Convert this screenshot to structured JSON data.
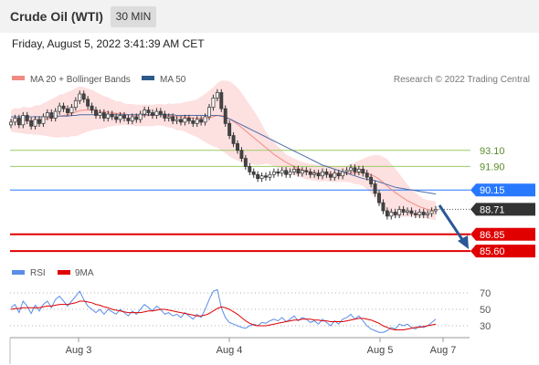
{
  "header": {
    "title": "Crude Oil (WTI)",
    "interval": "30 MIN",
    "datetime": "Friday, August 5, 2022 3:41:39 AM CET"
  },
  "legend": {
    "ma20_bb": "MA 20 + Bollinger Bands",
    "ma50": "MA 50",
    "copyright": "Research © 2022 Trading Central"
  },
  "levels": [
    {
      "value": "93.10",
      "price": 93.1,
      "color": "#9ccc65",
      "style": "line"
    },
    {
      "value": "91.90",
      "price": 91.9,
      "color": "#9ccc65",
      "style": "line"
    },
    {
      "value": "90.15",
      "price": 90.15,
      "color": "#2979ff",
      "style": "box"
    },
    {
      "value": "88.71",
      "price": 88.71,
      "color": "#333333",
      "style": "box"
    },
    {
      "value": "86.85",
      "price": 86.85,
      "color": "#e00000",
      "style": "box"
    },
    {
      "value": "85.60",
      "price": 85.6,
      "color": "#e00000",
      "style": "box"
    }
  ],
  "rsi": {
    "label": "RSI",
    "ma_label": "9MA",
    "ticks": [
      "70",
      "50",
      "30"
    ]
  },
  "x_axis": [
    "Aug 3",
    "Aug 4",
    "Aug 5",
    "Aug 7"
  ],
  "chart_data": {
    "type": "candlestick",
    "ylim": [
      85.0,
      97.5
    ],
    "rsi_ylim": [
      20,
      80
    ],
    "close": [
      95.2,
      95.5,
      95.0,
      95.7,
      95.3,
      94.9,
      95.4,
      95.1,
      95.6,
      95.9,
      95.5,
      96.0,
      96.4,
      96.2,
      95.9,
      96.3,
      96.8,
      97.3,
      96.9,
      96.4,
      96.1,
      95.7,
      95.9,
      95.5,
      95.8,
      95.6,
      95.4,
      95.7,
      95.5,
      95.3,
      95.6,
      95.4,
      95.8,
      96.1,
      95.9,
      95.7,
      96.0,
      95.8,
      95.5,
      95.6,
      95.3,
      95.4,
      95.2,
      95.5,
      95.3,
      95.1,
      95.4,
      95.2,
      95.6,
      96.3,
      97.0,
      97.4,
      96.2,
      95.1,
      94.2,
      93.6,
      93.1,
      92.5,
      91.9,
      91.5,
      91.3,
      91.0,
      91.2,
      91.1,
      91.3,
      91.5,
      91.4,
      91.6,
      91.3,
      91.5,
      91.7,
      91.4,
      91.6,
      91.5,
      91.3,
      91.4,
      91.2,
      91.5,
      91.3,
      91.1,
      91.4,
      91.2,
      91.5,
      91.6,
      91.8,
      91.5,
      91.7,
      91.4,
      91.1,
      90.6,
      89.9,
      89.2,
      88.6,
      88.2,
      88.5,
      88.3,
      88.7,
      88.5,
      88.6,
      88.4,
      88.3,
      88.5,
      88.3,
      88.4,
      88.6,
      88.71
    ],
    "ma20": [
      95.3,
      95.35,
      95.3,
      95.35,
      95.3,
      95.3,
      95.35,
      95.35,
      95.4,
      95.45,
      95.5,
      95.55,
      95.65,
      95.7,
      95.75,
      95.85,
      95.95,
      96.05,
      96.1,
      96.1,
      96.1,
      96.05,
      96.0,
      95.95,
      95.95,
      95.9,
      95.85,
      95.85,
      95.8,
      95.75,
      95.75,
      95.7,
      95.7,
      95.7,
      95.7,
      95.7,
      95.75,
      95.75,
      95.7,
      95.7,
      95.65,
      95.6,
      95.6,
      95.6,
      95.55,
      95.5,
      95.5,
      95.5,
      95.5,
      95.55,
      95.6,
      95.7,
      95.7,
      95.6,
      95.45,
      95.25,
      95.05,
      94.8,
      94.55,
      94.3,
      94.05,
      93.8,
      93.55,
      93.3,
      93.05,
      92.8,
      92.6,
      92.4,
      92.2,
      92.05,
      91.9,
      91.75,
      91.65,
      91.55,
      91.5,
      91.45,
      91.4,
      91.4,
      91.4,
      91.35,
      91.35,
      91.35,
      91.35,
      91.35,
      91.4,
      91.4,
      91.45,
      91.45,
      91.4,
      91.3,
      91.15,
      90.95,
      90.7,
      90.45,
      90.2,
      89.95,
      89.75,
      89.55,
      89.35,
      89.2,
      89.05,
      88.9,
      88.8,
      88.7,
      88.65,
      88.6
    ],
    "ma50": [
      95.6,
      95.6,
      95.6,
      95.6,
      95.6,
      95.6,
      95.6,
      95.6,
      95.6,
      95.6,
      95.6,
      95.65,
      95.65,
      95.65,
      95.65,
      95.7,
      95.7,
      95.75,
      95.75,
      95.75,
      95.75,
      95.75,
      95.75,
      95.75,
      95.75,
      95.75,
      95.75,
      95.75,
      95.75,
      95.75,
      95.75,
      95.75,
      95.75,
      95.75,
      95.75,
      95.75,
      95.75,
      95.75,
      95.75,
      95.75,
      95.75,
      95.7,
      95.7,
      95.7,
      95.7,
      95.7,
      95.7,
      95.7,
      95.7,
      95.7,
      95.7,
      95.7,
      95.65,
      95.55,
      95.45,
      95.3,
      95.15,
      95.0,
      94.85,
      94.7,
      94.55,
      94.4,
      94.25,
      94.1,
      93.95,
      93.8,
      93.65,
      93.5,
      93.35,
      93.2,
      93.05,
      92.9,
      92.75,
      92.6,
      92.45,
      92.3,
      92.15,
      92.0,
      91.9,
      91.8,
      91.7,
      91.6,
      91.5,
      91.4,
      91.3,
      91.2,
      91.1,
      91.0,
      90.95,
      90.9,
      90.85,
      90.75,
      90.65,
      90.55,
      90.45,
      90.35,
      90.3,
      90.25,
      90.2,
      90.15,
      90.1,
      90.05,
      90.0,
      89.95,
      89.9,
      89.85
    ],
    "bb_width": [
      0.8,
      0.9,
      0.9,
      1.0,
      1.0,
      1.0,
      1.1,
      1.1,
      1.2,
      1.3,
      1.4,
      1.5,
      1.6,
      1.6,
      1.7,
      1.7,
      1.8,
      1.8,
      1.7,
      1.6,
      1.5,
      1.4,
      1.3,
      1.2,
      1.1,
      1.0,
      0.9,
      0.9,
      0.8,
      0.8,
      0.8,
      0.8,
      0.8,
      0.8,
      0.8,
      0.8,
      0.8,
      0.8,
      0.8,
      0.9,
      0.9,
      1.0,
      1.0,
      1.1,
      1.2,
      1.3,
      1.4,
      1.6,
      1.8,
      2.0,
      2.2,
      2.4,
      2.6,
      2.7,
      2.8,
      2.8,
      2.7,
      2.6,
      2.4,
      2.2,
      2.0,
      1.8,
      1.5,
      1.2,
      1.0,
      0.9,
      0.8,
      0.7,
      0.6,
      0.6,
      0.6,
      0.6,
      0.6,
      0.6,
      0.6,
      0.6,
      0.6,
      0.6,
      0.6,
      0.6,
      0.6,
      0.6,
      0.6,
      0.6,
      0.7,
      0.8,
      0.9,
      1.0,
      1.2,
      1.4,
      1.6,
      1.8,
      1.9,
      2.0,
      1.9,
      1.8,
      1.6,
      1.4,
      1.2,
      1.0,
      0.9,
      0.8,
      0.7,
      0.7,
      0.7,
      0.7
    ],
    "rsi_values": [
      52,
      56,
      46,
      60,
      54,
      45,
      55,
      48,
      56,
      60,
      52,
      62,
      66,
      60,
      54,
      60,
      66,
      72,
      62,
      54,
      50,
      46,
      50,
      44,
      50,
      47,
      44,
      50,
      46,
      42,
      48,
      44,
      50,
      56,
      52,
      48,
      54,
      50,
      44,
      46,
      42,
      44,
      40,
      46,
      42,
      38,
      44,
      40,
      50,
      62,
      72,
      74,
      52,
      40,
      34,
      32,
      30,
      28,
      27,
      30,
      32,
      30,
      34,
      33,
      36,
      38,
      36,
      40,
      35,
      38,
      42,
      36,
      40,
      38,
      34,
      36,
      32,
      38,
      34,
      30,
      36,
      32,
      38,
      40,
      44,
      38,
      42,
      36,
      30,
      26,
      24,
      22,
      22,
      24,
      28,
      26,
      32,
      30,
      32,
      28,
      26,
      30,
      28,
      30,
      34,
      38
    ],
    "rsi_ma": [
      50,
      51,
      51,
      52,
      52,
      52,
      52,
      52,
      53,
      54,
      54,
      55,
      56,
      56,
      56,
      57,
      58,
      60,
      60,
      59,
      58,
      56,
      55,
      53,
      52,
      50,
      49,
      48,
      47,
      46,
      46,
      46,
      46,
      47,
      48,
      48,
      49,
      50,
      50,
      49,
      48,
      47,
      46,
      45,
      44,
      43,
      42,
      42,
      43,
      45,
      48,
      51,
      53,
      52,
      50,
      47,
      44,
      40,
      36,
      33,
      31,
      30,
      30,
      30,
      31,
      32,
      33,
      34,
      35,
      36,
      37,
      37,
      38,
      38,
      38,
      37,
      37,
      36,
      36,
      35,
      35,
      35,
      35,
      36,
      37,
      38,
      39,
      39,
      38,
      37,
      35,
      33,
      30,
      28,
      26,
      25,
      25,
      25,
      26,
      27,
      28,
      28,
      29,
      30,
      31,
      32
    ]
  }
}
